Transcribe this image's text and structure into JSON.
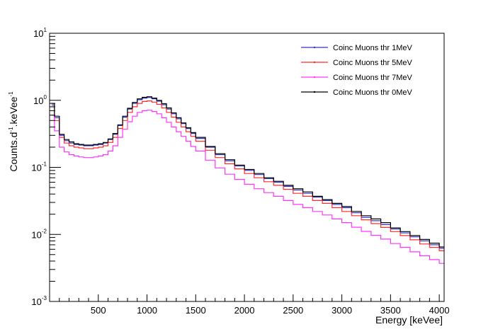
{
  "chart_data": {
    "type": "line",
    "xlabel": "Energy [keVee]",
    "ylabel_base": "Counts.d",
    "ylabel_exp1": "-1",
    "ylabel_mid": ".keVee",
    "ylabel_exp2": "-1",
    "xlim": [
      0,
      4050
    ],
    "ylim": [
      0.001,
      10
    ],
    "log_y": true,
    "grid": false,
    "legend_position": "top-right",
    "x_ticks": [
      500,
      1000,
      1500,
      2000,
      2500,
      3000,
      3500,
      4000
    ],
    "x_tick_labels": [
      "500",
      "1000",
      "1500",
      "2000",
      "2500",
      "3000",
      "3500",
      "4000"
    ],
    "y_ticks": [
      {
        "value": 0.001,
        "base": "10",
        "exp": "-3"
      },
      {
        "value": 0.01,
        "base": "10",
        "exp": "-2"
      },
      {
        "value": 0.1,
        "base": "10",
        "exp": "-1"
      },
      {
        "value": 1,
        "base": "10",
        "exp": "0"
      },
      {
        "value": 10,
        "base": "10",
        "exp": "1"
      }
    ],
    "x": [
      20,
      50,
      100,
      150,
      200,
      250,
      300,
      350,
      400,
      450,
      500,
      550,
      600,
      650,
      700,
      750,
      800,
      850,
      900,
      950,
      1000,
      1050,
      1100,
      1150,
      1200,
      1250,
      1300,
      1350,
      1400,
      1450,
      1500,
      1600,
      1700,
      1800,
      1900,
      2000,
      2100,
      2200,
      2300,
      2400,
      2500,
      2600,
      2700,
      2800,
      2900,
      3000,
      3100,
      3200,
      3300,
      3400,
      3500,
      3600,
      3700,
      3800,
      3900,
      4000,
      4050
    ],
    "series": [
      {
        "name": "Coinc Muons thr 1MeV",
        "color": "#3333cc",
        "values": [
          0.85,
          0.55,
          0.3,
          0.25,
          0.23,
          0.22,
          0.215,
          0.21,
          0.21,
          0.215,
          0.22,
          0.23,
          0.26,
          0.31,
          0.42,
          0.56,
          0.74,
          0.9,
          1.02,
          1.08,
          1.1,
          1.05,
          0.97,
          0.86,
          0.74,
          0.63,
          0.53,
          0.45,
          0.38,
          0.32,
          0.27,
          0.2,
          0.155,
          0.125,
          0.105,
          0.09,
          0.078,
          0.068,
          0.06,
          0.052,
          0.046,
          0.041,
          0.036,
          0.032,
          0.028,
          0.025,
          0.021,
          0.018,
          0.016,
          0.014,
          0.012,
          0.0105,
          0.0092,
          0.008,
          0.007,
          0.0062,
          0.0055
        ]
      },
      {
        "name": "Coinc Muons thr 5MeV",
        "color": "#ff2a2a",
        "values": [
          0.8,
          0.5,
          0.28,
          0.23,
          0.21,
          0.2,
          0.195,
          0.19,
          0.19,
          0.195,
          0.2,
          0.21,
          0.235,
          0.28,
          0.38,
          0.5,
          0.66,
          0.8,
          0.9,
          0.96,
          0.98,
          0.94,
          0.87,
          0.77,
          0.66,
          0.56,
          0.47,
          0.4,
          0.34,
          0.29,
          0.245,
          0.18,
          0.14,
          0.113,
          0.095,
          0.081,
          0.07,
          0.061,
          0.054,
          0.047,
          0.041,
          0.037,
          0.032,
          0.029,
          0.025,
          0.022,
          0.019,
          0.0165,
          0.0145,
          0.0127,
          0.011,
          0.0096,
          0.0083,
          0.0072,
          0.0064,
          0.0057,
          0.005
        ]
      },
      {
        "name": "Coinc Muons thr 7MeV",
        "color": "#ff33ff",
        "values": [
          0.6,
          0.35,
          0.2,
          0.17,
          0.155,
          0.148,
          0.143,
          0.14,
          0.14,
          0.143,
          0.148,
          0.155,
          0.175,
          0.21,
          0.28,
          0.37,
          0.48,
          0.58,
          0.66,
          0.7,
          0.71,
          0.68,
          0.63,
          0.55,
          0.47,
          0.4,
          0.34,
          0.29,
          0.245,
          0.205,
          0.175,
          0.128,
          0.098,
          0.079,
          0.066,
          0.056,
          0.048,
          0.042,
          0.037,
          0.032,
          0.028,
          0.025,
          0.022,
          0.0195,
          0.017,
          0.015,
          0.0128,
          0.0111,
          0.0097,
          0.0085,
          0.0073,
          0.0064,
          0.0055,
          0.0048,
          0.0042,
          0.0037,
          0.0033
        ]
      },
      {
        "name": "Coinc Muons thr 0MeV",
        "color": "#000000",
        "values": [
          0.9,
          0.58,
          0.31,
          0.26,
          0.24,
          0.225,
          0.22,
          0.215,
          0.215,
          0.22,
          0.225,
          0.235,
          0.265,
          0.32,
          0.43,
          0.58,
          0.76,
          0.93,
          1.05,
          1.11,
          1.13,
          1.08,
          1.0,
          0.89,
          0.77,
          0.65,
          0.55,
          0.46,
          0.39,
          0.33,
          0.28,
          0.205,
          0.16,
          0.13,
          0.108,
          0.093,
          0.081,
          0.07,
          0.062,
          0.054,
          0.048,
          0.043,
          0.037,
          0.033,
          0.029,
          0.026,
          0.022,
          0.019,
          0.017,
          0.015,
          0.0125,
          0.011,
          0.0096,
          0.0084,
          0.0074,
          0.0065,
          0.0058
        ]
      }
    ]
  }
}
